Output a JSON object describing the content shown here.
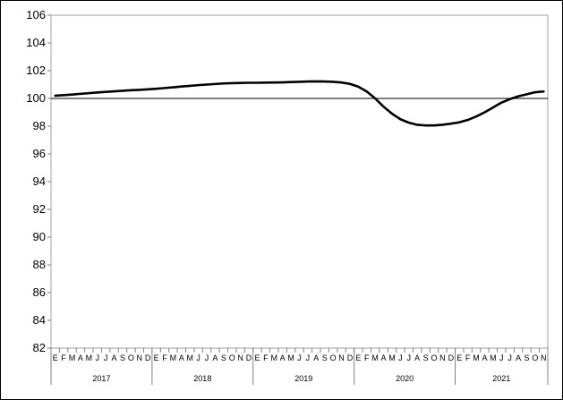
{
  "chart_data": {
    "type": "line",
    "title": "",
    "xlabel": "",
    "ylabel": "",
    "ylim": [
      82,
      106
    ],
    "yticks": [
      82,
      84,
      86,
      88,
      90,
      92,
      94,
      96,
      98,
      100,
      102,
      104,
      106
    ],
    "reference_line": 100,
    "grid": false,
    "legend": "none",
    "line_color": "#000000",
    "month_labels": [
      "E",
      "F",
      "M",
      "A",
      "M",
      "J",
      "J",
      "A",
      "S",
      "O",
      "N",
      "D"
    ],
    "years": [
      {
        "label": "2017",
        "months": 12
      },
      {
        "label": "2018",
        "months": 12
      },
      {
        "label": "2019",
        "months": 12
      },
      {
        "label": "2020",
        "months": 12
      },
      {
        "label": "2021",
        "months": 11
      }
    ],
    "series": [
      {
        "values": [
          100.2,
          100.24,
          100.28,
          100.33,
          100.38,
          100.43,
          100.47,
          100.51,
          100.55,
          100.59,
          100.62,
          100.66,
          100.7,
          100.75,
          100.8,
          100.86,
          100.91,
          100.96,
          101.0,
          101.04,
          101.08,
          101.1,
          101.12,
          101.13,
          101.13,
          101.14,
          101.15,
          101.16,
          101.18,
          101.2,
          101.22,
          101.23,
          101.22,
          101.2,
          101.15,
          101.05,
          100.85,
          100.5,
          100.0,
          99.4,
          98.9,
          98.5,
          98.25,
          98.1,
          98.05,
          98.05,
          98.1,
          98.18,
          98.28,
          98.45,
          98.7,
          99.0,
          99.35,
          99.7,
          99.95,
          100.15,
          100.3,
          100.45,
          100.5
        ]
      }
    ]
  }
}
